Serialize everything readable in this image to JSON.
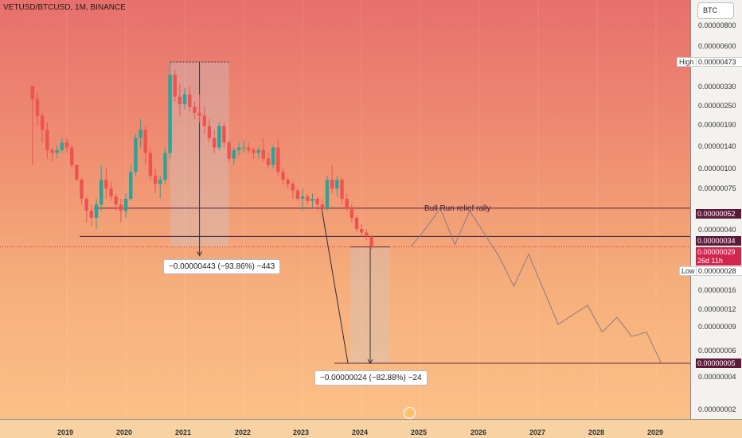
{
  "symbol": "VETUSD/BTCUSD, 1M, BINANCE",
  "currency_button": "BTC",
  "x_axis": {
    "labels": [
      "2019",
      "2020",
      "2021",
      "2022",
      "2023",
      "2024",
      "2025",
      "2026",
      "2027",
      "2028",
      "2029"
    ]
  },
  "y_axis": {
    "labels": [
      "0.00000800",
      "0.00000600",
      "0.00000330",
      "0.00000250",
      "0.00000190",
      "0.00000140",
      "0.00000100",
      "0.00000075",
      "0.00000040",
      "0.00000016",
      "0.00000012",
      "0.00000009",
      "0.00000006",
      "0.00000004",
      "0.00000002"
    ]
  },
  "price_tags": {
    "high_label": "High",
    "high_value": "0.00000473",
    "level1": "0.00000052",
    "level2": "0.00000034",
    "current": "0.00000029",
    "countdown": "26d 11h",
    "low_label": "Low",
    "low_value": "0.00000028",
    "target": "0.00000005"
  },
  "measurements": {
    "first": "−0.00000443 (−93.86%) −443",
    "second": "−0.00000024 (−82.88%) −24"
  },
  "annotation": "Bull Run relief rally",
  "colors": {
    "up": "#26a69a",
    "down": "#ef5350",
    "level_line": "#5a2448",
    "current_tag": "#d3264f"
  },
  "chart_data": {
    "type": "candlestick",
    "interval": "1M",
    "scale": "log",
    "candles": [
      {
        "o": 3.3,
        "h": 3.3,
        "l": 1.0,
        "c": 2.7
      },
      {
        "o": 2.7,
        "h": 3.0,
        "l": 1.8,
        "c": 2.1
      },
      {
        "o": 2.1,
        "h": 2.2,
        "l": 1.4,
        "c": 1.7
      },
      {
        "o": 1.7,
        "h": 1.9,
        "l": 1.1,
        "c": 1.25
      },
      {
        "o": 1.25,
        "h": 1.3,
        "l": 1.05,
        "c": 1.2
      },
      {
        "o": 1.2,
        "h": 1.35,
        "l": 1.1,
        "c": 1.25
      },
      {
        "o": 1.25,
        "h": 1.5,
        "l": 1.2,
        "c": 1.4
      },
      {
        "o": 1.4,
        "h": 1.5,
        "l": 1.2,
        "c": 1.3
      },
      {
        "o": 1.3,
        "h": 1.35,
        "l": 0.95,
        "c": 1.0
      },
      {
        "o": 1.0,
        "h": 1.0,
        "l": 0.78,
        "c": 0.8
      },
      {
        "o": 0.8,
        "h": 0.82,
        "l": 0.55,
        "c": 0.6
      },
      {
        "o": 0.6,
        "h": 0.62,
        "l": 0.42,
        "c": 0.5
      },
      {
        "o": 0.5,
        "h": 0.55,
        "l": 0.4,
        "c": 0.45
      },
      {
        "o": 0.45,
        "h": 0.6,
        "l": 0.38,
        "c": 0.55
      },
      {
        "o": 0.55,
        "h": 1.0,
        "l": 0.5,
        "c": 0.8
      },
      {
        "o": 0.8,
        "h": 0.95,
        "l": 0.6,
        "c": 0.7
      },
      {
        "o": 0.7,
        "h": 0.78,
        "l": 0.58,
        "c": 0.62
      },
      {
        "o": 0.62,
        "h": 0.65,
        "l": 0.5,
        "c": 0.55
      },
      {
        "o": 0.55,
        "h": 0.6,
        "l": 0.42,
        "c": 0.5
      },
      {
        "o": 0.5,
        "h": 0.65,
        "l": 0.45,
        "c": 0.6
      },
      {
        "o": 0.6,
        "h": 1.0,
        "l": 0.58,
        "c": 0.9
      },
      {
        "o": 0.9,
        "h": 1.6,
        "l": 0.85,
        "c": 1.5
      },
      {
        "o": 1.5,
        "h": 2.0,
        "l": 1.3,
        "c": 1.7
      },
      {
        "o": 1.7,
        "h": 1.8,
        "l": 1.0,
        "c": 1.2
      },
      {
        "o": 1.2,
        "h": 1.3,
        "l": 0.8,
        "c": 0.85
      },
      {
        "o": 0.85,
        "h": 0.95,
        "l": 0.65,
        "c": 0.75
      },
      {
        "o": 0.75,
        "h": 0.85,
        "l": 0.6,
        "c": 0.8
      },
      {
        "o": 0.8,
        "h": 1.3,
        "l": 0.75,
        "c": 1.2
      },
      {
        "o": 1.2,
        "h": 4.73,
        "l": 1.1,
        "c": 3.9
      },
      {
        "o": 3.9,
        "h": 4.2,
        "l": 2.6,
        "c": 2.8
      },
      {
        "o": 2.8,
        "h": 3.4,
        "l": 2.1,
        "c": 2.5
      },
      {
        "o": 2.5,
        "h": 3.2,
        "l": 2.3,
        "c": 2.9
      },
      {
        "o": 2.9,
        "h": 3.3,
        "l": 2.2,
        "c": 2.4
      },
      {
        "o": 2.4,
        "h": 2.6,
        "l": 2.0,
        "c": 2.2
      },
      {
        "o": 2.2,
        "h": 2.9,
        "l": 1.9,
        "c": 2.1
      },
      {
        "o": 2.1,
        "h": 2.4,
        "l": 1.6,
        "c": 1.8
      },
      {
        "o": 1.8,
        "h": 2.0,
        "l": 1.4,
        "c": 1.5
      },
      {
        "o": 1.5,
        "h": 1.7,
        "l": 1.2,
        "c": 1.3
      },
      {
        "o": 1.3,
        "h": 1.9,
        "l": 1.25,
        "c": 1.8
      },
      {
        "o": 1.8,
        "h": 1.9,
        "l": 1.3,
        "c": 1.4
      },
      {
        "o": 1.4,
        "h": 1.45,
        "l": 1.05,
        "c": 1.1
      },
      {
        "o": 1.1,
        "h": 1.3,
        "l": 1.0,
        "c": 1.25
      },
      {
        "o": 1.25,
        "h": 1.4,
        "l": 1.15,
        "c": 1.3
      },
      {
        "o": 1.3,
        "h": 1.45,
        "l": 1.2,
        "c": 1.3
      },
      {
        "o": 1.3,
        "h": 1.4,
        "l": 1.2,
        "c": 1.25
      },
      {
        "o": 1.25,
        "h": 1.3,
        "l": 1.1,
        "c": 1.2
      },
      {
        "o": 1.2,
        "h": 1.3,
        "l": 1.1,
        "c": 1.25
      },
      {
        "o": 1.25,
        "h": 1.5,
        "l": 1.05,
        "c": 1.1
      },
      {
        "o": 1.1,
        "h": 1.2,
        "l": 0.95,
        "c": 1.0
      },
      {
        "o": 1.0,
        "h": 1.35,
        "l": 0.95,
        "c": 1.3
      },
      {
        "o": 1.3,
        "h": 1.45,
        "l": 0.85,
        "c": 0.9
      },
      {
        "o": 0.9,
        "h": 0.95,
        "l": 0.75,
        "c": 0.8
      },
      {
        "o": 0.8,
        "h": 0.82,
        "l": 0.7,
        "c": 0.75
      },
      {
        "o": 0.75,
        "h": 0.78,
        "l": 0.6,
        "c": 0.68
      },
      {
        "o": 0.68,
        "h": 0.7,
        "l": 0.58,
        "c": 0.6
      },
      {
        "o": 0.6,
        "h": 0.7,
        "l": 0.5,
        "c": 0.62
      },
      {
        "o": 0.62,
        "h": 0.65,
        "l": 0.55,
        "c": 0.58
      },
      {
        "o": 0.58,
        "h": 0.65,
        "l": 0.52,
        "c": 0.6
      },
      {
        "o": 0.6,
        "h": 0.62,
        "l": 0.5,
        "c": 0.55
      },
      {
        "o": 0.55,
        "h": 0.6,
        "l": 0.5,
        "c": 0.52
      },
      {
        "o": 0.52,
        "h": 0.85,
        "l": 0.5,
        "c": 0.8
      },
      {
        "o": 0.8,
        "h": 1.0,
        "l": 0.65,
        "c": 0.7
      },
      {
        "o": 0.7,
        "h": 0.85,
        "l": 0.62,
        "c": 0.8
      },
      {
        "o": 0.8,
        "h": 0.82,
        "l": 0.55,
        "c": 0.6
      },
      {
        "o": 0.6,
        "h": 0.65,
        "l": 0.5,
        "c": 0.52
      },
      {
        "o": 0.52,
        "h": 0.55,
        "l": 0.42,
        "c": 0.45
      },
      {
        "o": 0.45,
        "h": 0.47,
        "l": 0.36,
        "c": 0.38
      },
      {
        "o": 0.38,
        "h": 0.41,
        "l": 0.34,
        "c": 0.36
      },
      {
        "o": 0.36,
        "h": 0.38,
        "l": 0.32,
        "c": 0.34
      },
      {
        "o": 0.34,
        "h": 0.35,
        "l": 0.28,
        "c": 0.29
      }
    ],
    "levels": [
      0.52,
      0.34,
      0.05
    ],
    "projection": [
      [
        "2024-11",
        0.29
      ],
      [
        "2025-02",
        0.38
      ],
      [
        "2025-05",
        0.52
      ],
      [
        "2025-08",
        0.3
      ],
      [
        "2025-11",
        0.5
      ],
      [
        "2026-05",
        0.25
      ],
      [
        "2026-08",
        0.16
      ],
      [
        "2026-11",
        0.26
      ],
      [
        "2027-05",
        0.09
      ],
      [
        "2027-11",
        0.12
      ],
      [
        "2028-02",
        0.08
      ],
      [
        "2028-05",
        0.1
      ],
      [
        "2028-08",
        0.075
      ],
      [
        "2028-11",
        0.08
      ],
      [
        "2029-02",
        0.05
      ]
    ]
  }
}
